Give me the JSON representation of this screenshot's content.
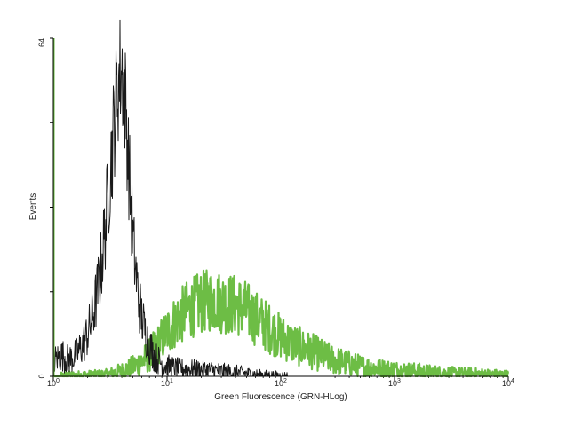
{
  "chart_data": {
    "type": "line",
    "title": "",
    "xlabel": "Green Fluorescence (GRN-HLog)",
    "ylabel": "Events",
    "x_scale": "log",
    "xlim": [
      1,
      10000
    ],
    "ylim": [
      0,
      64
    ],
    "x_ticks": [
      {
        "value": 1,
        "base": "10",
        "exp": "0"
      },
      {
        "value": 10,
        "base": "10",
        "exp": "1"
      },
      {
        "value": 100,
        "base": "10",
        "exp": "2"
      },
      {
        "value": 1000,
        "base": "10",
        "exp": "3"
      },
      {
        "value": 10000,
        "base": "10",
        "exp": "4"
      }
    ],
    "y_tick_labels": {
      "min": "0",
      "max": "64"
    },
    "grid": false,
    "legend": "none",
    "series": [
      {
        "color": "#1a1a1a",
        "x": [
          1,
          1.1,
          1.2,
          1.35,
          1.5,
          1.65,
          1.8,
          2.0,
          2.2,
          2.4,
          2.6,
          2.8,
          3.0,
          3.2,
          3.4,
          3.6,
          3.8,
          4.0,
          4.2,
          4.4,
          4.6,
          4.8,
          5.0,
          5.3,
          5.6,
          6.0,
          6.5,
          7.0,
          7.5,
          8.0,
          9.0,
          10,
          12,
          15,
          20,
          25,
          30,
          40,
          50,
          60,
          80,
          100,
          130
        ],
        "y": [
          3,
          3.5,
          4,
          3.2,
          3.6,
          4.6,
          5.8,
          8,
          11,
          15,
          20,
          26,
          33,
          40,
          47,
          53,
          57,
          58,
          55,
          48,
          40,
          33,
          26,
          20,
          15,
          11,
          8,
          6,
          4.5,
          3.5,
          2.5,
          2,
          1.6,
          1.4,
          1.3,
          1.2,
          1.0,
          0.8,
          0.6,
          0.4,
          0.3,
          0.1,
          0
        ]
      },
      {
        "color": "#6dbd45",
        "x": [
          1,
          3,
          4,
          5,
          6,
          7,
          8,
          9,
          10,
          12,
          15,
          20,
          25,
          30,
          40,
          50,
          60,
          70,
          80,
          100,
          120,
          150,
          200,
          250,
          300,
          400,
          500,
          700,
          1000,
          1500,
          2000,
          3000,
          5000,
          7000,
          10000
        ],
        "y": [
          0,
          0.4,
          1.0,
          1.8,
          2.8,
          4.0,
          5.5,
          7.0,
          8.5,
          10.5,
          12.5,
          14,
          14.5,
          14,
          13.5,
          12.5,
          11,
          10,
          9,
          7.5,
          6.5,
          5.5,
          4.5,
          3.6,
          3.0,
          2.4,
          1.9,
          1.5,
          1.2,
          1.0,
          0.8,
          0.6,
          0.5,
          0.4,
          0.3
        ]
      }
    ]
  }
}
